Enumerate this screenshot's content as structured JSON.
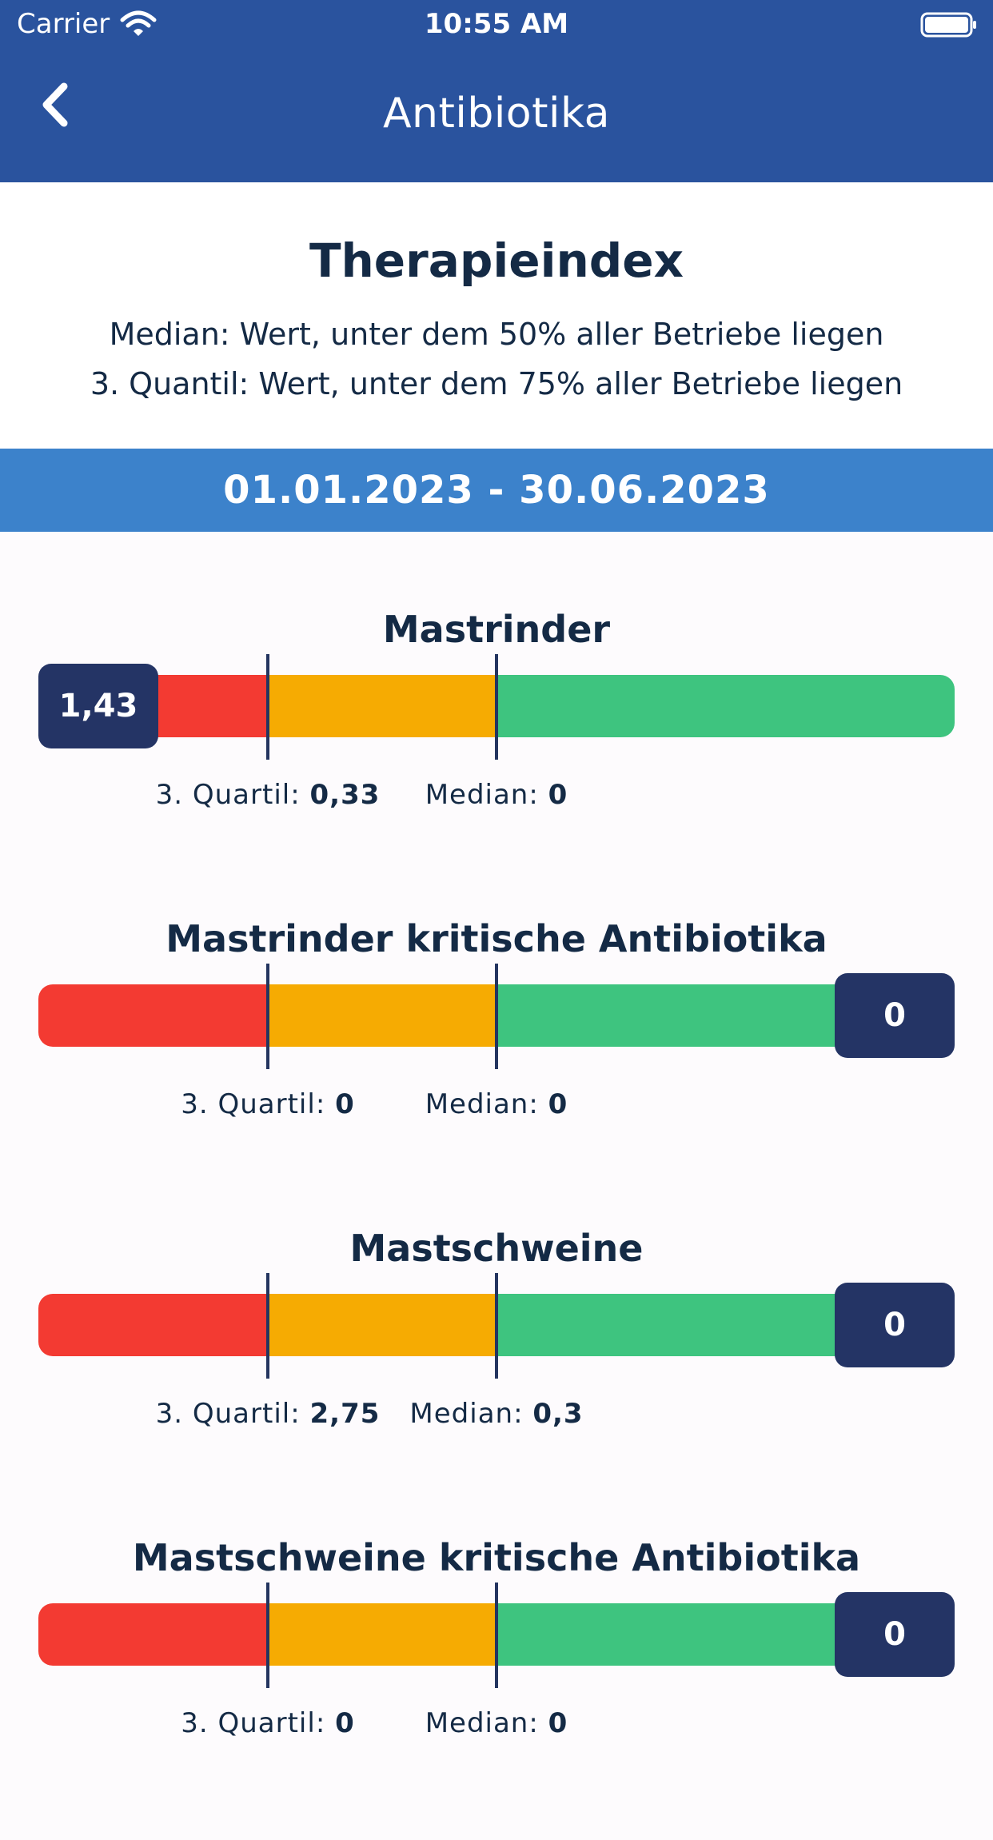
{
  "status_bar": {
    "carrier": "Carrier",
    "time": "10:55 AM"
  },
  "nav": {
    "title": "Antibiotika",
    "back_icon": "chevron-left-icon"
  },
  "intro": {
    "title": "Therapieindex",
    "line1": "Median: Wert, unter dem 50% aller Betriebe liegen",
    "line2": "3. Quantil: Wert, unter dem 75% aller Betriebe liegen"
  },
  "period": "01.01.2023 - 30.06.2023",
  "colors": {
    "header": "#2a539e",
    "period": "#3c82cb",
    "red": "#f33a32",
    "orange": "#f6ab02",
    "green": "#3ec47f",
    "badge": "#243465"
  },
  "metrics": [
    {
      "title": "Mastrinder",
      "value": "1,43",
      "badge_side": "left",
      "q3_label": "3. Quartil:",
      "q3_value": "0,33",
      "median_label": "Median:",
      "median_value": "0"
    },
    {
      "title": "Mastrinder kritische Antibiotika",
      "value": "0",
      "badge_side": "right",
      "q3_label": "3. Quartil:",
      "q3_value": "0",
      "median_label": "Median:",
      "median_value": "0"
    },
    {
      "title": "Mastschweine",
      "value": "0",
      "badge_side": "right",
      "q3_label": "3. Quartil:",
      "q3_value": "2,75",
      "median_label": "Median:",
      "median_value": "0,3"
    },
    {
      "title": "Mastschweine kritische Antibiotika",
      "value": "0",
      "badge_side": "right",
      "q3_label": "3. Quartil:",
      "q3_value": "0",
      "median_label": "Median:",
      "median_value": "0"
    }
  ]
}
